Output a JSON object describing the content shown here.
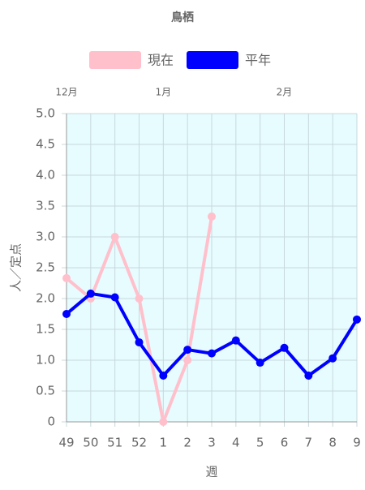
{
  "chart_data": {
    "type": "line",
    "title": "鳥栖",
    "categories": [
      "49",
      "50",
      "51",
      "52",
      "1",
      "2",
      "3",
      "4",
      "5",
      "6",
      "7",
      "8",
      "9"
    ],
    "top_labels": [
      "12月",
      null,
      null,
      null,
      "1月",
      null,
      null,
      null,
      null,
      "2月",
      null,
      null,
      null
    ],
    "series": [
      {
        "name": "現在",
        "color": "#ffc0cb",
        "values": [
          2.33,
          2.0,
          3.0,
          2.0,
          0,
          1.0,
          3.33,
          null,
          null,
          null,
          null,
          null,
          null
        ]
      },
      {
        "name": "平年",
        "color": "#0000ff",
        "values": [
          1.75,
          2.08,
          2.02,
          1.29,
          0.75,
          1.17,
          1.11,
          1.32,
          0.96,
          1.2,
          0.75,
          1.03,
          1.66
        ]
      }
    ],
    "ylim": [
      0,
      5
    ],
    "yticks": [
      0,
      {
        "value": 0.5,
        "label": "0.5"
      },
      {
        "value": 1,
        "label": "1.0"
      },
      {
        "value": 1.5,
        "label": "1.5"
      },
      {
        "value": 2,
        "label": "2.0"
      },
      {
        "value": 2.5,
        "label": "2.5"
      },
      {
        "value": 3,
        "label": "3.0"
      },
      {
        "value": 3.5,
        "label": "3.5"
      },
      {
        "value": 4,
        "label": "4.0"
      },
      {
        "value": 4.5,
        "label": "4.5"
      },
      {
        "value": 5,
        "label": "5.0"
      }
    ],
    "ylabel": "人／定点",
    "xlabel": "週",
    "grid": true,
    "legend": "top"
  }
}
